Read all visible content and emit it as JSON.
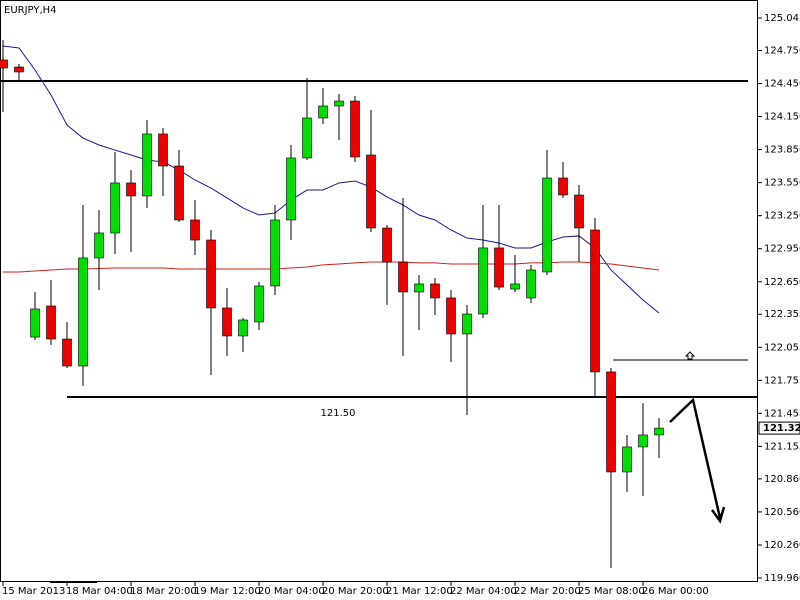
{
  "chart_data": {
    "type": "candlestick",
    "title": "EURJPY,H4",
    "categories": [
      "15 Mar 2013",
      null,
      null,
      null,
      "18 Mar 04:00",
      null,
      null,
      null,
      "18 Mar 20:00",
      null,
      null,
      null,
      "19 Mar 12:00",
      null,
      null,
      null,
      "20 Mar 04:00",
      null,
      null,
      null,
      "20 Mar 20:00",
      null,
      null,
      null,
      "21 Mar 12:00",
      null,
      null,
      null,
      "22 Mar 04:00",
      null,
      null,
      null,
      "22 Mar 20:00",
      null,
      null,
      null,
      "25 Mar 08:00",
      null,
      null,
      null,
      "26 Mar 00:00",
      null
    ],
    "series": [
      {
        "up_color": "#00dd00",
        "down_color": "#ee0000",
        "open": [
          124.664,
          124.6,
          122.148,
          122.43,
          122.13,
          121.885,
          122.866,
          123.093,
          123.547,
          123.429,
          123.992,
          123.701,
          123.211,
          123.029,
          122.412,
          122.158,
          122.285,
          122.612,
          123.211,
          123.774,
          124.137,
          124.246,
          124.291,
          123.801,
          123.138,
          122.829,
          122.557,
          122.63,
          122.503,
          122.176,
          122.357,
          122.957,
          122.584,
          122.503,
          122.739,
          123.592,
          123.438,
          123.12,
          121.831,
          120.923,
          121.15,
          121.259
        ],
        "high": [
          124.845,
          124.627,
          122.557,
          122.666,
          122.285,
          123.347,
          123.302,
          123.828,
          123.665,
          124.119,
          124.046,
          123.846,
          123.392,
          123.12,
          122.593,
          122.321,
          122.648,
          123.347,
          123.892,
          124.5,
          124.409,
          124.355,
          124.337,
          124.21,
          123.165,
          123.411,
          122.711,
          122.684,
          122.575,
          122.439,
          123.347,
          123.347,
          122.893,
          122.802,
          123.846,
          123.737,
          123.529,
          123.229,
          121.867,
          121.259,
          121.549,
          121.413
        ],
        "low": [
          124.191,
          124.482,
          122.121,
          122.076,
          121.867,
          121.704,
          122.575,
          122.902,
          122.92,
          123.32,
          123.429,
          123.193,
          122.893,
          121.803,
          121.976,
          122.012,
          122.212,
          122.53,
          123.029,
          123.756,
          124.083,
          123.937,
          123.737,
          123.102,
          122.439,
          121.976,
          122.212,
          122.348,
          121.921,
          121.44,
          122.321,
          122.575,
          122.557,
          122.457,
          122.711,
          123.411,
          122.829,
          121.595,
          120.051,
          120.741,
          120.705,
          121.05
        ],
        "close": [
          124.591,
          124.555,
          122.403,
          122.13,
          121.885,
          122.866,
          123.093,
          123.547,
          123.429,
          123.992,
          123.701,
          123.211,
          123.029,
          122.412,
          122.158,
          122.303,
          122.612,
          123.211,
          123.774,
          124.137,
          124.246,
          124.291,
          123.783,
          123.138,
          122.829,
          122.557,
          122.63,
          122.503,
          122.176,
          122.357,
          122.957,
          122.602,
          122.63,
          122.757,
          123.592,
          123.438,
          123.138,
          121.831,
          120.923,
          121.15,
          121.259,
          121.321
        ]
      }
    ],
    "lines": [
      {
        "color": "#1a1a8c",
        "values": [
          124.791,
          124.773,
          124.573,
          124.346,
          124.073,
          123.955,
          123.892,
          123.846,
          123.801,
          123.756,
          123.737,
          123.665,
          123.574,
          123.501,
          123.411,
          123.32,
          123.256,
          123.274,
          123.392,
          123.483,
          123.483,
          123.547,
          123.565,
          123.51,
          123.42,
          123.347,
          123.256,
          123.211,
          123.12,
          123.047,
          123.029,
          123.002,
          122.957,
          122.957,
          123.011,
          123.056,
          123.066,
          122.957,
          122.757,
          122.621,
          122.484,
          122.366
        ]
      },
      {
        "color": "#cc2222",
        "values": [
          122.739,
          122.739,
          122.748,
          122.757,
          122.766,
          122.766,
          122.77,
          122.775,
          122.775,
          122.775,
          122.775,
          122.766,
          122.766,
          122.766,
          122.766,
          122.766,
          122.766,
          122.766,
          122.775,
          122.784,
          122.803,
          122.811,
          122.821,
          122.829,
          122.829,
          122.829,
          122.821,
          122.821,
          122.811,
          122.811,
          122.811,
          122.811,
          122.811,
          122.821,
          122.821,
          122.829,
          122.829,
          122.821,
          122.811,
          122.793,
          122.775,
          122.757
        ]
      }
    ],
    "hlines": [
      124.473,
      121.604,
      121.94
    ],
    "annotations": [
      "121.50"
    ],
    "last_price": 121.321,
    "ylim": [
      119.96,
      125.045
    ],
    "yticks": [
      125.045,
      {
        "value": 124.75,
        "label": "124.750"
      },
      {
        "value": 124.45,
        "label": "124.450"
      },
      {
        "value": 124.15,
        "label": "124.150"
      },
      {
        "value": 123.85,
        "label": "123.850"
      },
      {
        "value": 123.55,
        "label": "123.550"
      },
      {
        "value": 123.25,
        "label": "123.250"
      },
      {
        "value": 122.95,
        "label": "122.950"
      },
      {
        "value": 122.65,
        "label": "122.650"
      },
      122.355,
      122.055,
      121.755,
      121.455,
      121.155,
      {
        "value": 120.86,
        "label": "120.860"
      },
      {
        "value": 120.56,
        "label": "120.560"
      },
      {
        "value": 120.26,
        "label": "120.260"
      },
      {
        "value": 119.96,
        "label": "119.960"
      }
    ]
  }
}
